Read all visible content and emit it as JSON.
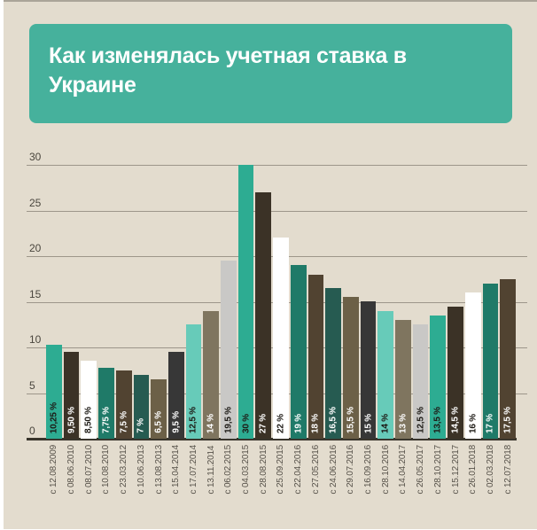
{
  "title": "Как изменялась учетная ставка в Украине",
  "colors": {
    "background": "#e3dcce",
    "page_edge": "#ffffff",
    "title_box": "#46b19c",
    "title_text": "#ffffff",
    "gridline": "#9d968a",
    "axis_line": "#39352c",
    "ytick_text": "#4a463e",
    "date_text": "#57524a",
    "value_text_dark": "#1d1a15",
    "value_text_light": "#ffffff"
  },
  "chart_data": {
    "type": "bar",
    "title": "Как изменялась учетная ставка в Украине",
    "xlabel": "",
    "ylabel": "",
    "unit": "%",
    "ylim": [
      0,
      30
    ],
    "yticks": [
      30,
      25,
      20,
      15,
      10,
      5,
      0
    ],
    "grid": true,
    "legend": "none",
    "bars": [
      {
        "date": "с 12.08.2009",
        "value": 10.25,
        "label": "10,25 %",
        "color": "#2dac92",
        "label_color": "#1d1a15"
      },
      {
        "date": "с 08.06.2010",
        "value": 9.5,
        "label": "9,50 %",
        "color": "#3b3226",
        "label_color": "#ffffff"
      },
      {
        "date": "с 08.07.2010",
        "value": 8.5,
        "label": "8,50 %",
        "color": "#ffffff",
        "label_color": "#1d1a15"
      },
      {
        "date": "с 10.08.2010",
        "value": 7.75,
        "label": "7,75 %",
        "color": "#1f7a68",
        "label_color": "#ffffff"
      },
      {
        "date": "с 23.03.2012",
        "value": 7.5,
        "label": "7,5 %",
        "color": "#514331",
        "label_color": "#ffffff"
      },
      {
        "date": "с 10.06.2013",
        "value": 7,
        "label": "7 %",
        "color": "#265b51",
        "label_color": "#ffffff"
      },
      {
        "date": "с 13.08.2013",
        "value": 6.5,
        "label": "6,5 %",
        "color": "#6c6047",
        "label_color": "#ffffff"
      },
      {
        "date": "с 15.04.2014",
        "value": 9.5,
        "label": "9,5 %",
        "color": "#373737",
        "label_color": "#ffffff"
      },
      {
        "date": "с 17.07.2014",
        "value": 12.5,
        "label": "12,5 %",
        "color": "#67cbb9",
        "label_color": "#1d1a15"
      },
      {
        "date": "с 13.11.2014",
        "value": 14,
        "label": "14 %",
        "color": "#7f755f",
        "label_color": "#ffffff"
      },
      {
        "date": "с 06.02.2015",
        "value": 19.5,
        "label": "19,5 %",
        "color": "#c9c8c6",
        "label_color": "#1d1a15"
      },
      {
        "date": "с 04.03.2015",
        "value": 30,
        "label": "30 %",
        "color": "#2dac92",
        "label_color": "#1d1a15"
      },
      {
        "date": "с 28.08.2015",
        "value": 27,
        "label": "27 %",
        "color": "#3b3226",
        "label_color": "#ffffff"
      },
      {
        "date": "с 25.09.2015",
        "value": 22,
        "label": "22 %",
        "color": "#ffffff",
        "label_color": "#1d1a15"
      },
      {
        "date": "с 22.04.2016",
        "value": 19,
        "label": "19 %",
        "color": "#1f7a68",
        "label_color": "#ffffff"
      },
      {
        "date": "с 27.05.2016",
        "value": 18,
        "label": "18 %",
        "color": "#514331",
        "label_color": "#ffffff"
      },
      {
        "date": "с 24.06.2016",
        "value": 16.5,
        "label": "16,5 %",
        "color": "#265b51",
        "label_color": "#ffffff"
      },
      {
        "date": "с 29.07.2016",
        "value": 15.5,
        "label": "15,5 %",
        "color": "#6c6047",
        "label_color": "#ffffff"
      },
      {
        "date": "с 16.09.2016",
        "value": 15,
        "label": "15 %",
        "color": "#373737",
        "label_color": "#ffffff"
      },
      {
        "date": "с 28.10.2016",
        "value": 14,
        "label": "14 %",
        "color": "#67cbb9",
        "label_color": "#1d1a15"
      },
      {
        "date": "с 14.04.2017",
        "value": 13,
        "label": "13 %",
        "color": "#7f755f",
        "label_color": "#ffffff"
      },
      {
        "date": "с 26.05.2017",
        "value": 12.5,
        "label": "12,5 %",
        "color": "#c9c8c6",
        "label_color": "#1d1a15"
      },
      {
        "date": "с 28.10.2017",
        "value": 13.5,
        "label": "13,5 %",
        "color": "#2dac92",
        "label_color": "#1d1a15"
      },
      {
        "date": "с 15.12.2017",
        "value": 14.5,
        "label": "14,5 %",
        "color": "#3b3226",
        "label_color": "#ffffff"
      },
      {
        "date": "с 26.01.2018",
        "value": 16,
        "label": "16 %",
        "color": "#ffffff",
        "label_color": "#1d1a15"
      },
      {
        "date": "с 02.03.2018",
        "value": 17,
        "label": "17 %",
        "color": "#1f7a68",
        "label_color": "#ffffff"
      },
      {
        "date": "с 12.07.2018",
        "value": 17.5,
        "label": "17,5 %",
        "color": "#514331",
        "label_color": "#ffffff"
      }
    ]
  }
}
